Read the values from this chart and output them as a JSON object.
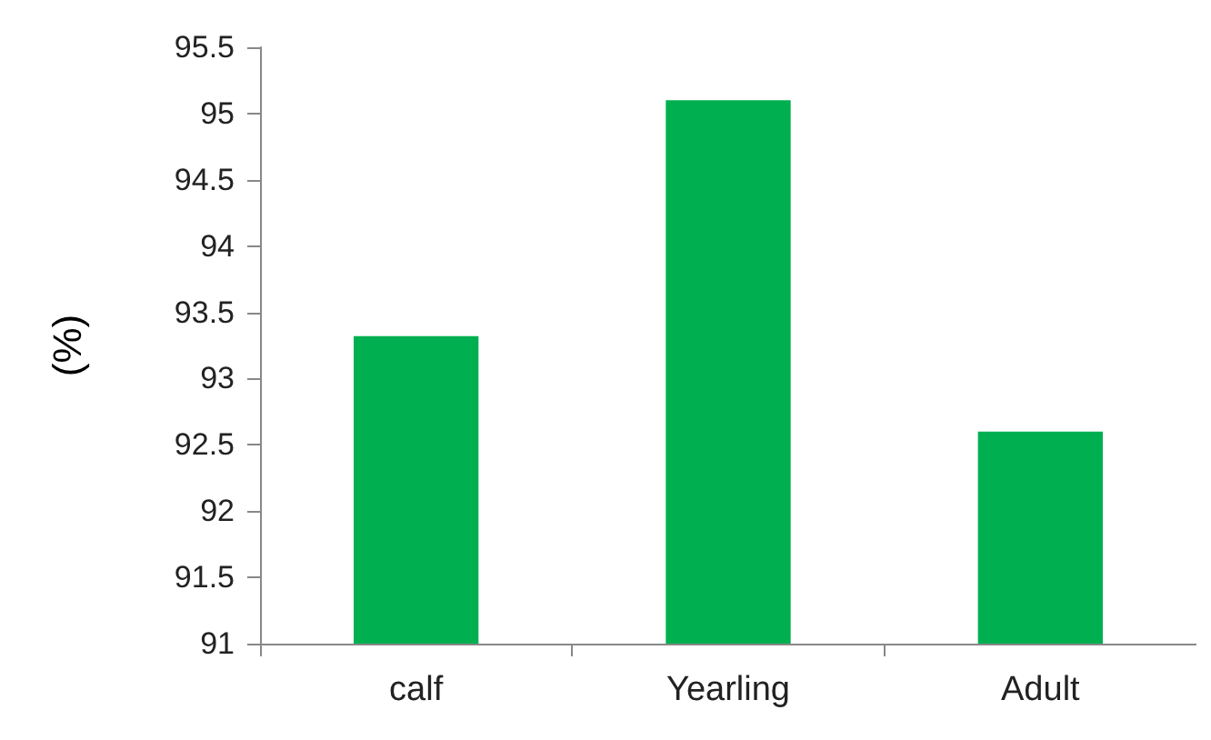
{
  "chart_data": {
    "type": "bar",
    "ylabel": "(%)",
    "categories": [
      "calf",
      "Yearling",
      "Adult"
    ],
    "series": [
      {
        "color": "#00b050",
        "values": [
          93.32,
          95.1,
          92.6
        ]
      }
    ],
    "ylim": [
      91,
      95.5
    ],
    "yticks": [
      91,
      91.5,
      92,
      92.5,
      93,
      93.5,
      94,
      94.5,
      95,
      95.5
    ],
    "grid": false
  }
}
